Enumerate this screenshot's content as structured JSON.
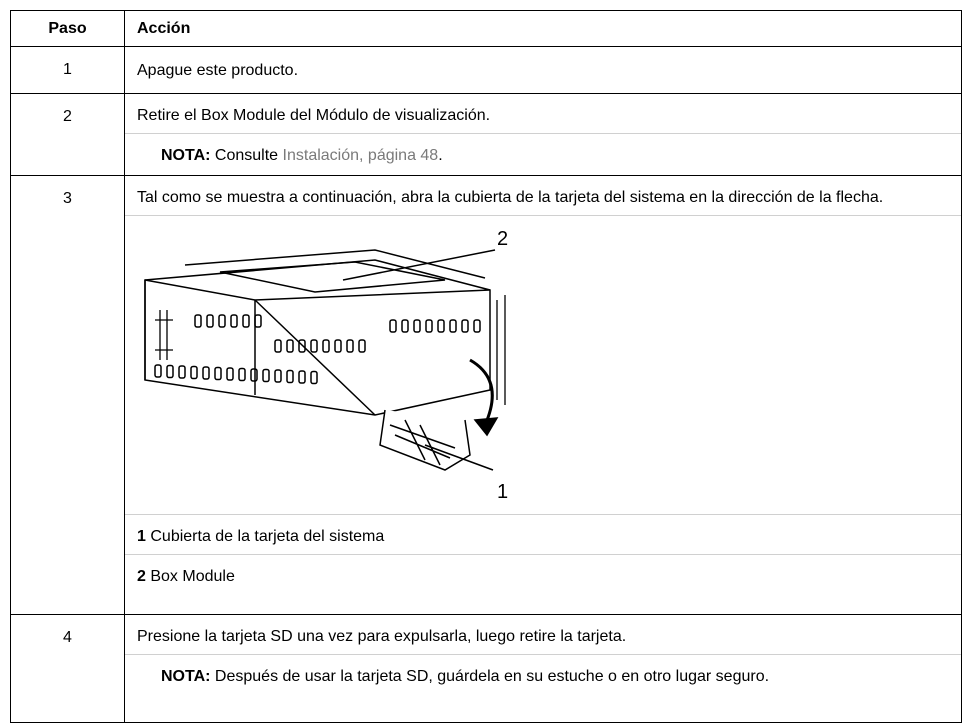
{
  "table": {
    "header": [
      "Paso",
      "Acción"
    ],
    "rows": [
      {
        "step": "1",
        "text": "Apague este producto."
      },
      {
        "step": "2",
        "text": "Retire el Box Module del Módulo de visualización.",
        "note": {
          "label": "NOTA:",
          "text": "Consulte",
          "link": "Instalación, página 48",
          "end": "."
        }
      },
      {
        "step": "3",
        "text": "Tal como se muestra a continuación, abra la cubierta de la tarjeta del sistema en la dirección de la flecha.",
        "figure": {
          "callouts": [
            "2",
            "1"
          ]
        },
        "legend": [
          {
            "num": "1",
            "text": "Cubierta de la tarjeta del sistema"
          },
          {
            "num": "2",
            "text": "Box Module"
          }
        ]
      },
      {
        "step": "4",
        "text": "Presione la tarjeta SD una vez para expulsarla, luego retire la tarjeta.",
        "note": {
          "label": "NOTA:",
          "text": "Después de usar la tarjeta SD, guárdela en su estuche o en otro lugar seguro."
        }
      }
    ]
  }
}
